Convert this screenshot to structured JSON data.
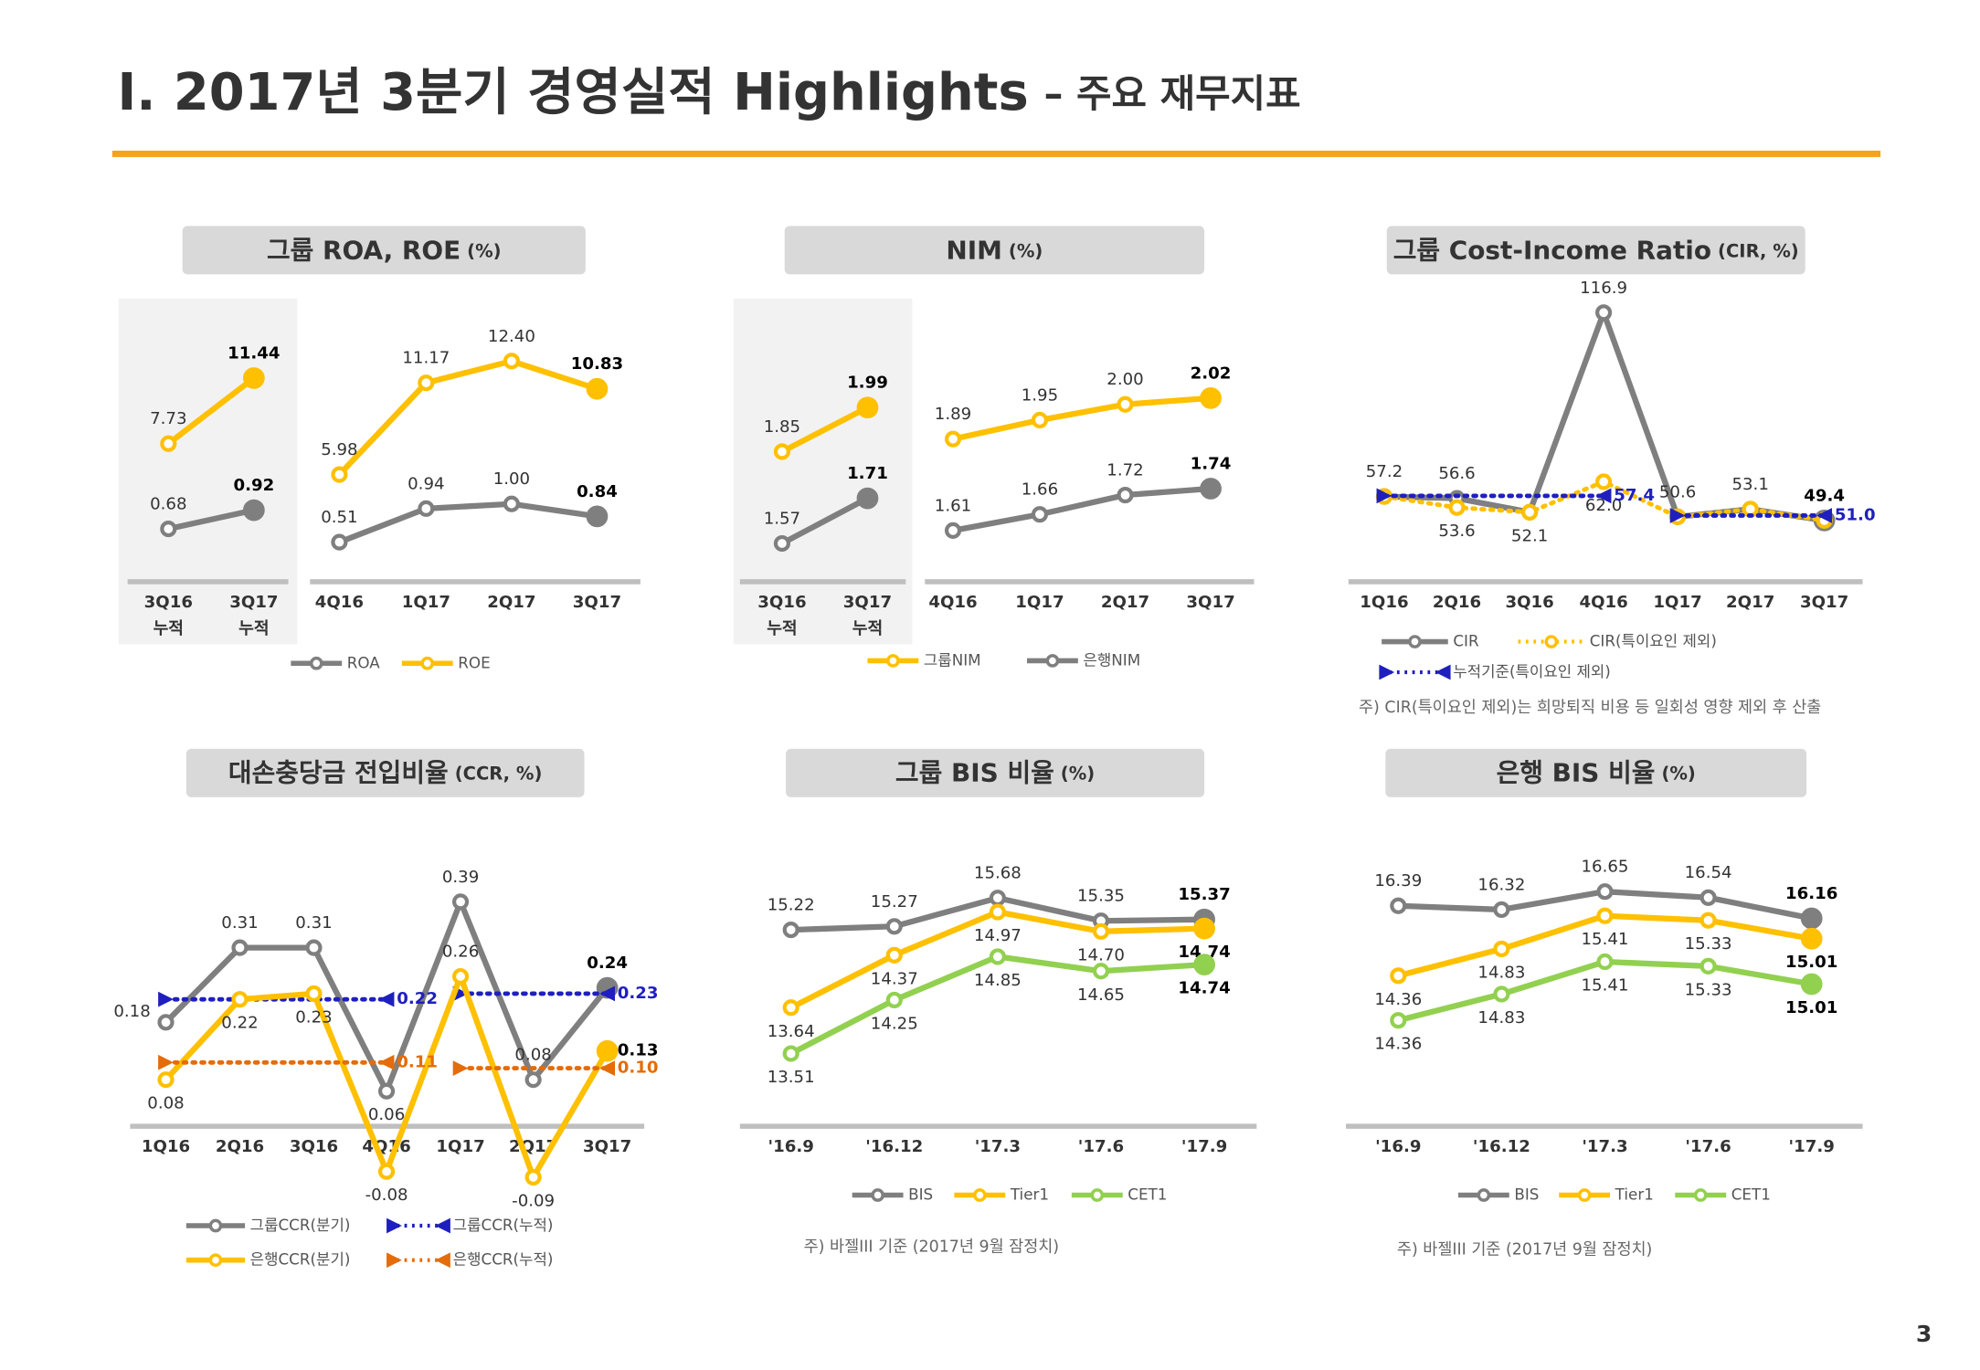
{
  "header": {
    "title": "Ⅰ. 2017년 3분기 경영실적 Highlights",
    "subtitle": "– 주요 재무지표"
  },
  "page_number": "3",
  "chart_data": [
    {
      "type": "line",
      "title": "그룹 ROA, ROE",
      "unit": "(%)",
      "categories": [
        "3Q16\n누적",
        "3Q17\n누적",
        "4Q16",
        "1Q17",
        "2Q17",
        "3Q17"
      ],
      "series": [
        {
          "name": "ROA",
          "color": "#7f7f7f",
          "values": [
            0.68,
            0.92,
            0.51,
            0.94,
            1.0,
            0.84
          ],
          "value_labels": [
            "0.68",
            "0.92",
            "0.51",
            "0.94",
            "1.00",
            "0.84"
          ]
        },
        {
          "name": "ROE",
          "color": "#ffc000",
          "values": [
            7.73,
            11.44,
            5.98,
            11.17,
            12.4,
            10.83
          ],
          "value_labels": [
            "7.73",
            "11.44",
            "5.98",
            "11.17",
            "12.40",
            "10.83"
          ]
        }
      ]
    },
    {
      "type": "line",
      "title": "NIM",
      "unit": "(%)",
      "categories": [
        "3Q16\n누적",
        "3Q17\n누적",
        "4Q16",
        "1Q17",
        "2Q17",
        "3Q17"
      ],
      "series": [
        {
          "name": "그룹NIM",
          "color": "#ffc000",
          "values": [
            1.85,
            1.99,
            1.89,
            1.95,
            2.0,
            2.02
          ],
          "value_labels": [
            "1.85",
            "1.99",
            "1.89",
            "1.95",
            "2.00",
            "2.02"
          ]
        },
        {
          "name": "은행NIM",
          "color": "#7f7f7f",
          "values": [
            1.57,
            1.71,
            1.61,
            1.66,
            1.72,
            1.74
          ],
          "value_labels": [
            "1.57",
            "1.71",
            "1.61",
            "1.66",
            "1.72",
            "1.74"
          ]
        }
      ]
    },
    {
      "type": "line",
      "title": "그룹 Cost-Income Ratio",
      "unit": "(CIR, %)",
      "categories": [
        "1Q16",
        "2Q16",
        "3Q16",
        "4Q16",
        "1Q17",
        "2Q17",
        "3Q17"
      ],
      "series": [
        {
          "name": "CIR",
          "color": "#7f7f7f",
          "values": [
            57.2,
            56.6,
            52.1,
            116.9,
            50.6,
            53.1,
            49.4
          ],
          "value_labels": [
            "57.2",
            "56.6",
            "52.1",
            "116.9",
            "50.6",
            "53.1",
            "49.4"
          ]
        },
        {
          "name": "CIR(특이요인 제외)",
          "color": "#ffc000",
          "line_style": "dotted",
          "values": [
            57.2,
            53.6,
            52.1,
            62.0,
            50.6,
            53.1,
            49.4
          ],
          "value_labels": [
            null,
            "53.6",
            null,
            "62.0",
            null,
            null,
            null
          ]
        },
        {
          "name": "누적기준(특이요인 제외)",
          "color": "#1f1fbf",
          "line_style": "dotted",
          "marker": "triangle",
          "values": [
            57.4,
            57.4,
            57.4,
            57.4,
            51.0,
            51.0,
            51.0
          ],
          "value_labels": [
            null,
            null,
            null,
            "57.4",
            null,
            null,
            "51.0"
          ]
        }
      ],
      "note": "주) CIR(특이요인 제외)는 희망퇴직 비용 등 일회성 영향 제외 후 산출"
    },
    {
      "type": "line",
      "title": "대손충당금 전입비율",
      "unit": "(CCR, %)",
      "categories": [
        "1Q16",
        "2Q16",
        "3Q16",
        "4Q16",
        "1Q17",
        "2Q17",
        "3Q17"
      ],
      "series": [
        {
          "name": "그룹CCR(분기)",
          "color": "#7f7f7f",
          "values": [
            0.18,
            0.31,
            0.31,
            0.06,
            0.39,
            0.08,
            0.24
          ],
          "value_labels": [
            "0.18",
            "0.31",
            "0.31",
            "0.06",
            "0.39",
            "0.08",
            "0.24"
          ]
        },
        {
          "name": "그룹CCR(누적)",
          "color": "#1f1fbf",
          "line_style": "dotted",
          "marker": "triangle",
          "values": [
            0.22,
            0.22,
            0.22,
            0.22,
            0.23,
            0.23,
            0.23
          ],
          "value_labels": [
            null,
            null,
            null,
            "0.22",
            null,
            null,
            "0.23"
          ]
        },
        {
          "name": "은행CCR(분기)",
          "color": "#ffc000",
          "values": [
            0.08,
            0.22,
            0.23,
            -0.08,
            0.26,
            -0.09,
            0.13
          ],
          "value_labels": [
            "0.08",
            "0.22",
            "0.23",
            "-0.08",
            "0.26",
            "-0.09",
            "0.13"
          ]
        },
        {
          "name": "은행CCR(누적)",
          "color": "#e46c0a",
          "line_style": "dotted",
          "marker": "triangle",
          "values": [
            0.11,
            0.11,
            0.11,
            0.11,
            0.1,
            0.1,
            0.1
          ],
          "value_labels": [
            null,
            null,
            null,
            "0.11",
            null,
            null,
            "0.10"
          ]
        }
      ]
    },
    {
      "type": "line",
      "title": "그룹 BIS 비율",
      "unit": "(%)",
      "categories": [
        "'16.9",
        "'16.12",
        "'17.3",
        "'17.6",
        "'17.9"
      ],
      "series": [
        {
          "name": "BIS",
          "color": "#7f7f7f",
          "values": [
            15.22,
            15.27,
            15.68,
            15.35,
            15.37
          ],
          "value_labels": [
            "15.22",
            "15.27",
            "15.68",
            "15.35",
            "15.37"
          ]
        },
        {
          "name": "Tier1",
          "color": "#ffc000",
          "values": [
            13.64,
            14.37,
            14.97,
            14.7,
            14.74
          ],
          "value_labels": [
            "13.64",
            "14.37",
            "14.97",
            "14.70",
            "14.74"
          ]
        },
        {
          "name": "CET1",
          "color": "#92d050",
          "values": [
            13.51,
            14.25,
            14.85,
            14.65,
            14.74
          ],
          "value_labels": [
            "13.51",
            "14.25",
            "14.85",
            "14.65",
            "14.74"
          ]
        }
      ],
      "note": "주) 바젤III 기준 (2017년 9월 잠정치)"
    },
    {
      "type": "line",
      "title": "은행 BIS 비율",
      "unit": "(%)",
      "categories": [
        "'16.9",
        "'16.12",
        "'17.3",
        "'17.6",
        "'17.9"
      ],
      "series": [
        {
          "name": "BIS",
          "color": "#7f7f7f",
          "values": [
            16.39,
            16.32,
            16.65,
            16.54,
            16.16
          ],
          "value_labels": [
            "16.39",
            "16.32",
            "16.65",
            "16.54",
            "16.16"
          ]
        },
        {
          "name": "Tier1",
          "color": "#ffc000",
          "values": [
            14.36,
            14.83,
            15.41,
            15.33,
            15.01
          ],
          "value_labels": [
            "14.36",
            "14.83",
            "15.41",
            "15.33",
            "15.01"
          ]
        },
        {
          "name": "CET1",
          "color": "#92d050",
          "values": [
            14.36,
            14.83,
            15.41,
            15.33,
            15.01
          ],
          "value_labels": [
            "14.36",
            "14.83",
            "15.41",
            "15.33",
            "15.01"
          ]
        }
      ],
      "note": "주) 바젤III 기준 (2017년 9월 잠정치)"
    }
  ]
}
